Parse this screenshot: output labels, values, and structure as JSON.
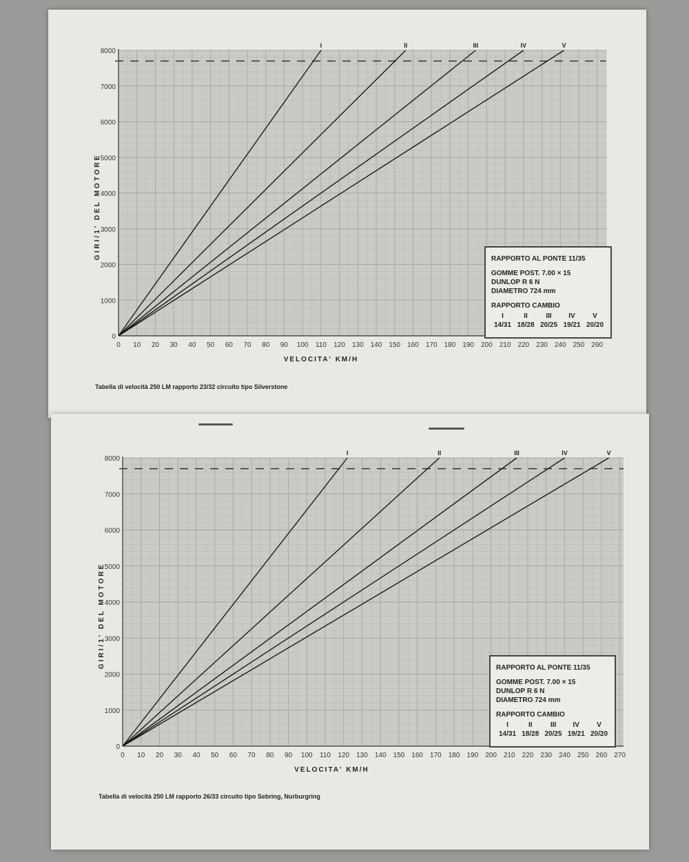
{
  "chart_data": [
    {
      "type": "line",
      "ylabel": "GIRI/1' DEL MOTORE",
      "xlabel": "VELOCITA' KM/H",
      "caption": "Tabella di velocità 250 LM rapporto 23/32 circuito tipo Silverstone",
      "xlim": [
        0,
        265
      ],
      "ylim": [
        0,
        8000
      ],
      "xticks": [
        0,
        10,
        20,
        30,
        40,
        50,
        60,
        70,
        80,
        90,
        100,
        110,
        120,
        130,
        140,
        150,
        160,
        170,
        180,
        190,
        200,
        210,
        220,
        230,
        240,
        250,
        260
      ],
      "yticks": [
        0,
        1000,
        2000,
        3000,
        4000,
        5000,
        6000,
        7000,
        8000
      ],
      "grid": true,
      "rev_limit_dashed": 7700,
      "series": [
        {
          "name": "I",
          "x": [
            0,
            110
          ],
          "y": [
            0,
            8000
          ]
        },
        {
          "name": "II",
          "x": [
            0,
            156
          ],
          "y": [
            0,
            8000
          ]
        },
        {
          "name": "III",
          "x": [
            0,
            194
          ],
          "y": [
            0,
            8000
          ]
        },
        {
          "name": "IV",
          "x": [
            0,
            220
          ],
          "y": [
            0,
            8000
          ]
        },
        {
          "name": "V",
          "x": [
            0,
            242
          ],
          "y": [
            0,
            8000
          ]
        }
      ],
      "legend": {
        "ponte": "RAPPORTO AL PONTE 11/35",
        "gomme": "GOMME POST. 7.00 × 15",
        "dunlop": "DUNLOP R 6 N",
        "diametro": "DIAMETRO 724 mm",
        "cambio": "RAPPORTO CAMBIO",
        "gears": [
          {
            "g": "I",
            "r": "14/31"
          },
          {
            "g": "II",
            "r": "18/28"
          },
          {
            "g": "III",
            "r": "20/25"
          },
          {
            "g": "IV",
            "r": "19/21"
          },
          {
            "g": "V",
            "r": "20/20"
          }
        ]
      }
    },
    {
      "type": "line",
      "ylabel": "GIRI/1' DEL MOTORE",
      "xlabel": "VELOCITA' KM/H",
      "caption": "Tabella di velocità 250 LM rapporto 26/33 circuito tipo Sebring, Nurburgring",
      "xlim": [
        0,
        272
      ],
      "ylim": [
        0,
        8000
      ],
      "xticks": [
        0,
        10,
        20,
        30,
        40,
        50,
        60,
        70,
        80,
        90,
        100,
        110,
        120,
        130,
        140,
        150,
        160,
        170,
        180,
        190,
        200,
        210,
        220,
        230,
        240,
        250,
        260,
        270
      ],
      "yticks": [
        0,
        1000,
        2000,
        3000,
        4000,
        5000,
        6000,
        7000,
        8000
      ],
      "grid": true,
      "rev_limit_dashed": 7700,
      "series": [
        {
          "name": "I",
          "x": [
            0,
            122
          ],
          "y": [
            0,
            8000
          ]
        },
        {
          "name": "II",
          "x": [
            0,
            172
          ],
          "y": [
            0,
            8000
          ]
        },
        {
          "name": "III",
          "x": [
            0,
            214
          ],
          "y": [
            0,
            8000
          ]
        },
        {
          "name": "IV",
          "x": [
            0,
            240
          ],
          "y": [
            0,
            8000
          ]
        },
        {
          "name": "V",
          "x": [
            0,
            264
          ],
          "y": [
            0,
            8000
          ]
        }
      ],
      "legend": {
        "ponte": "RAPPORTO AL PONTE 11/35",
        "gomme": "GOMME POST. 7.00 × 15",
        "dunlop": "DUNLOP R 6 N",
        "diametro": "DIAMETRO 724 mm",
        "cambio": "RAPPORTO CAMBIO",
        "gears": [
          {
            "g": "I",
            "r": "14/31"
          },
          {
            "g": "II",
            "r": "18/28"
          },
          {
            "g": "III",
            "r": "20/25"
          },
          {
            "g": "IV",
            "r": "19/21"
          },
          {
            "g": "V",
            "r": "20/20"
          }
        ]
      }
    }
  ]
}
